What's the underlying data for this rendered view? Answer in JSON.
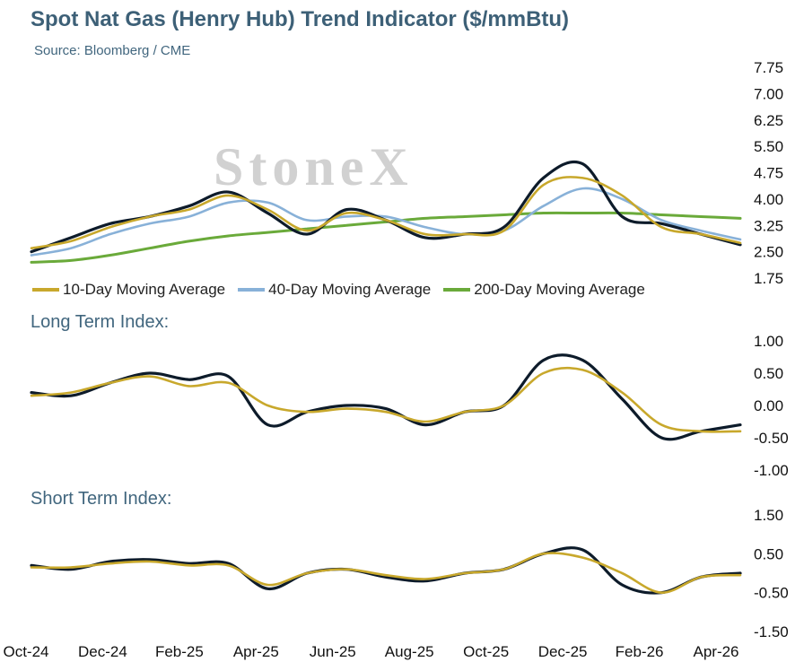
{
  "title": "Spot Nat Gas (Henry Hub) Trend Indicator ($/mmBtu)",
  "subtitle": "Source: Bloomberg / CME",
  "watermark": "StoneX",
  "colors": {
    "spot": "#0d1b2a",
    "ma10": "#c8a82c",
    "ma40": "#88b1d8",
    "ma200": "#6aaa3a",
    "header": "#3d6077"
  },
  "chart_data": [
    {
      "type": "line",
      "title": "Spot Nat Gas (Henry Hub) Trend Indicator ($/mmBtu)",
      "ylim": [
        1.75,
        7.75
      ],
      "yticks": [
        "7.75",
        "7.00",
        "6.25",
        "5.50",
        "4.75",
        "4.00",
        "3.25",
        "2.50",
        "1.75"
      ],
      "x": [
        "2024-10",
        "2024-11",
        "2024-12",
        "2025-01",
        "2025-02",
        "2025-03",
        "2025-04",
        "2025-05",
        "2025-06",
        "2025-07",
        "2025-08",
        "2025-09",
        "2025-10",
        "2025-11",
        "2025-12",
        "2026-01",
        "2026-02",
        "2026-03",
        "2026-04"
      ],
      "xtick_labels": [
        "Oct-24",
        "Dec-24",
        "Feb-25",
        "Apr-25",
        "Jun-25",
        "Aug-25",
        "Oct-25",
        "Dec-25",
        "Feb-26",
        "Apr-26"
      ],
      "legend": "bottom",
      "series": [
        {
          "key": "spot",
          "values": [
            2.5,
            2.9,
            3.3,
            3.5,
            3.8,
            4.2,
            3.6,
            3.0,
            3.7,
            3.4,
            2.9,
            3.0,
            3.2,
            4.6,
            5.0,
            3.5,
            3.3,
            3.0,
            2.7
          ]
        },
        {
          "key": "ma10",
          "name": "10-Day Moving Average",
          "values": [
            2.6,
            2.8,
            3.2,
            3.5,
            3.7,
            4.1,
            3.7,
            3.1,
            3.6,
            3.4,
            3.0,
            3.0,
            3.1,
            4.4,
            4.6,
            4.1,
            3.2,
            3.0,
            2.75
          ]
        },
        {
          "key": "ma40",
          "name": "40-Day Moving Average",
          "values": [
            2.4,
            2.6,
            3.0,
            3.3,
            3.5,
            3.9,
            3.9,
            3.4,
            3.5,
            3.5,
            3.2,
            3.0,
            3.1,
            3.8,
            4.3,
            4.0,
            3.4,
            3.1,
            2.85
          ]
        },
        {
          "key": "ma200",
          "name": "200-Day Moving Average",
          "values": [
            2.2,
            2.25,
            2.4,
            2.6,
            2.8,
            2.95,
            3.05,
            3.15,
            3.25,
            3.35,
            3.45,
            3.5,
            3.55,
            3.6,
            3.6,
            3.6,
            3.55,
            3.5,
            3.45
          ]
        }
      ]
    },
    {
      "type": "line",
      "title": "Long Term Index:",
      "ylim": [
        -1.0,
        1.0
      ],
      "yticks": [
        "1.00",
        "0.50",
        "0.00",
        "-0.50",
        "-1.00"
      ],
      "series": [
        {
          "key": "spot",
          "values": [
            0.2,
            0.15,
            0.35,
            0.5,
            0.4,
            0.45,
            -0.3,
            -0.1,
            0.0,
            -0.05,
            -0.3,
            -0.1,
            0.0,
            0.7,
            0.7,
            0.1,
            -0.5,
            -0.4,
            -0.3
          ]
        },
        {
          "key": "ma10",
          "values": [
            0.15,
            0.2,
            0.35,
            0.45,
            0.3,
            0.35,
            0.0,
            -0.1,
            -0.05,
            -0.1,
            -0.25,
            -0.1,
            0.0,
            0.5,
            0.55,
            0.2,
            -0.3,
            -0.4,
            -0.4
          ]
        }
      ]
    },
    {
      "type": "line",
      "title": "Short Term Index:",
      "ylim": [
        -1.5,
        1.5
      ],
      "yticks": [
        "1.50",
        "0.50",
        "-0.50",
        "-1.50"
      ],
      "series": [
        {
          "key": "spot",
          "values": [
            0.2,
            0.1,
            0.3,
            0.35,
            0.25,
            0.25,
            -0.4,
            0.0,
            0.1,
            -0.1,
            -0.2,
            0.0,
            0.1,
            0.5,
            0.6,
            -0.3,
            -0.5,
            -0.1,
            0.0
          ]
        },
        {
          "key": "ma10",
          "values": [
            0.15,
            0.15,
            0.25,
            0.3,
            0.2,
            0.2,
            -0.3,
            0.0,
            0.1,
            -0.05,
            -0.15,
            0.0,
            0.1,
            0.5,
            0.4,
            0.0,
            -0.5,
            -0.1,
            -0.05
          ]
        }
      ]
    }
  ]
}
